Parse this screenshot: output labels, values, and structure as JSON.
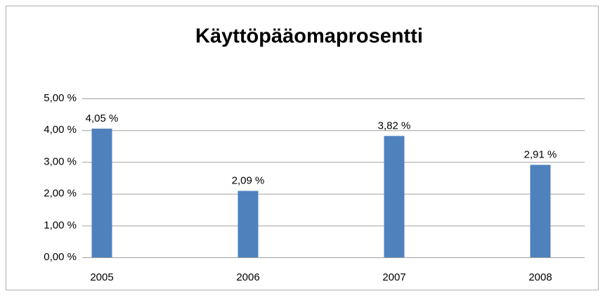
{
  "chart_data": {
    "type": "bar",
    "title": "Käyttöpääomaprosentti",
    "categories": [
      "2005",
      "2006",
      "2007",
      "2008"
    ],
    "values": [
      4.05,
      2.09,
      3.82,
      2.91
    ],
    "value_labels": [
      "4,05 %",
      "2,09 %",
      "3,82 %",
      "2,91 %"
    ],
    "color": "#4f81bd",
    "ylim": [
      0,
      5
    ],
    "yticks": [
      {
        "value": 0,
        "label": "0,00 %"
      },
      {
        "value": 1,
        "label": "1,00 %"
      },
      {
        "value": 2,
        "label": "2,00 %"
      },
      {
        "value": 3,
        "label": "3,00 %"
      },
      {
        "value": 4,
        "label": "4,00 %"
      },
      {
        "value": 5,
        "label": "5,00 %"
      }
    ],
    "grid": true
  }
}
